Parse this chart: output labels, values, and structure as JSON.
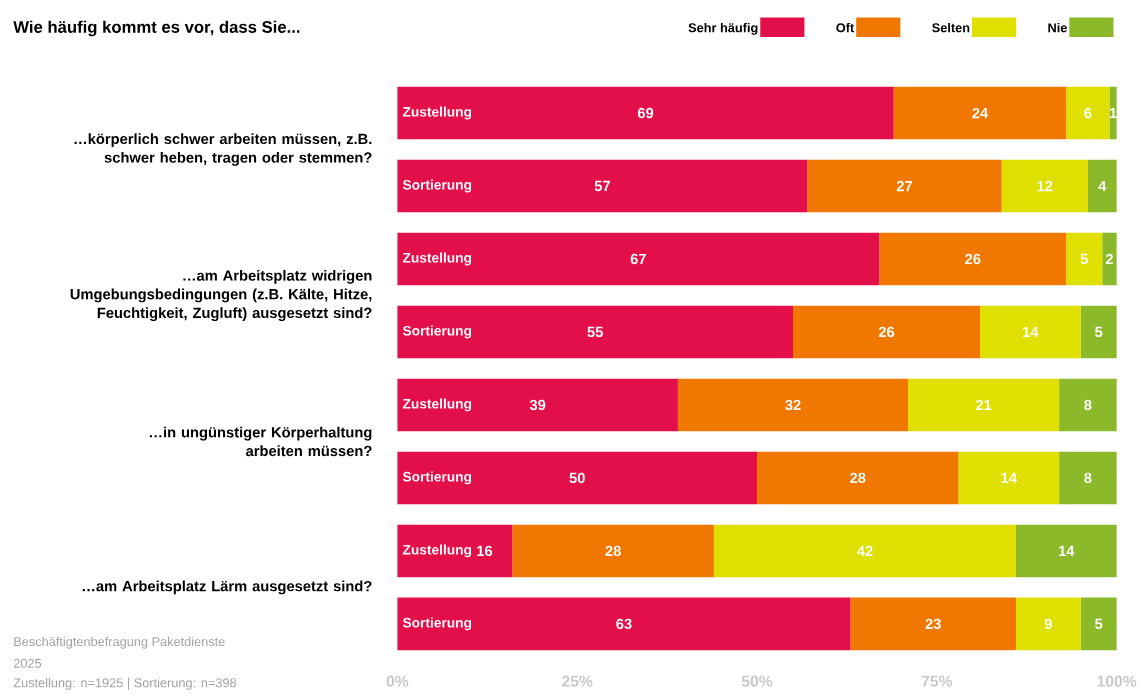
{
  "chart_data": {
    "type": "bar",
    "orientation": "horizontal",
    "stacked": true,
    "title": "Wie häufig kommt es vor, dass Sie...",
    "categories": [
      "Zustellung",
      "Sortierung",
      "Zustellung",
      "Sortierung",
      "Zustellung",
      "Sortierung",
      "Zustellung",
      "Sortierung"
    ],
    "series": [
      {
        "name": "Sehr häufig",
        "color": "#e30f4b",
        "values": [
          69,
          57,
          67,
          55,
          39,
          50,
          16,
          63
        ]
      },
      {
        "name": "Oft",
        "color": "#f07800",
        "values": [
          24,
          27,
          26,
          26,
          32,
          28,
          28,
          23
        ]
      },
      {
        "name": "Selten",
        "color": "#dfe000",
        "values": [
          6,
          12,
          5,
          14,
          21,
          14,
          42,
          9
        ]
      },
      {
        "name": "Nie",
        "color": "#8cb92a",
        "values": [
          1,
          4,
          2,
          5,
          8,
          8,
          14,
          5
        ]
      }
    ],
    "xlim": [
      0,
      100
    ],
    "xticks": [
      {
        "value": 0,
        "label": "0%"
      },
      {
        "value": 25,
        "label": "25%"
      },
      {
        "value": 50,
        "label": "50%"
      },
      {
        "value": 75,
        "label": "75%"
      },
      {
        "value": 100,
        "label": "100%"
      }
    ],
    "data_labels": true,
    "legend": "top right",
    "grid": false,
    "annotations": [
      "…körperlich schwer arbeiten müssen, z.B. schwer heben, tragen oder stemmen?",
      "…am Arbeitsplatz widrigen Umgebungsbedingungen (z.B. Kälte, Hitze, Feuchtigkeit, Zugluft) ausgesetzt sind?",
      "…in ungünstiger Körperhaltung arbeiten müssen?",
      "…am Arbeitsplatz Lärm ausgesetzt sind?",
      "Beschäftigtenbefragung Paketdienste",
      "2025",
      "Zustellung: n=1925 | Sortierung: n=398"
    ]
  }
}
